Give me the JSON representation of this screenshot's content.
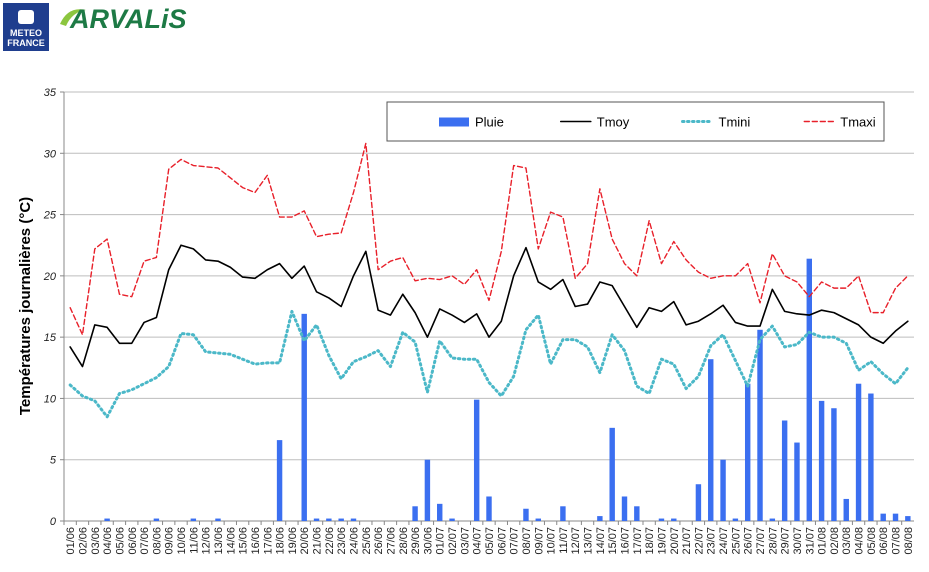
{
  "header": {
    "meteo_line1": "METEO",
    "meteo_line2": "FRANCE",
    "brand": "ARVALiS"
  },
  "chart_data": {
    "type": "combo",
    "y_label": "Températures journalières (°C)",
    "categories": [
      "01/06",
      "02/06",
      "03/06",
      "04/06",
      "05/06",
      "06/06",
      "07/06",
      "08/06",
      "09/06",
      "10/06",
      "11/06",
      "12/06",
      "13/06",
      "14/06",
      "15/06",
      "16/06",
      "17/06",
      "18/06",
      "19/06",
      "20/06",
      "21/06",
      "22/06",
      "23/06",
      "24/06",
      "25/06",
      "26/06",
      "27/06",
      "28/06",
      "29/06",
      "30/06",
      "01/07",
      "02/07",
      "03/07",
      "04/07",
      "05/07",
      "06/07",
      "07/07",
      "08/07",
      "09/07",
      "10/07",
      "11/07",
      "12/07",
      "13/07",
      "14/07",
      "15/07",
      "16/07",
      "17/07",
      "18/07",
      "19/07",
      "20/07",
      "21/07",
      "22/07",
      "23/07",
      "24/07",
      "25/07",
      "26/07",
      "27/07",
      "28/07",
      "29/07",
      "30/07",
      "31/07",
      "01/08",
      "02/08",
      "03/08",
      "04/08",
      "05/08",
      "06/08",
      "07/08",
      "08/08"
    ],
    "series": [
      {
        "name": "Pluie",
        "type": "bar",
        "color": "#3b6ff0",
        "values": [
          0,
          0,
          0,
          0.2,
          0,
          0,
          0,
          0.2,
          0,
          0,
          0.2,
          0,
          0.2,
          0,
          0,
          0,
          0,
          6.6,
          0,
          16.9,
          0.2,
          0.2,
          0.2,
          0.2,
          0,
          0,
          0,
          0,
          1.2,
          5.0,
          1.4,
          0.2,
          0,
          9.9,
          2.0,
          0,
          0,
          1.0,
          0.2,
          0,
          1.2,
          0,
          0,
          0.4,
          7.6,
          2.0,
          1.2,
          0,
          0.2,
          0.2,
          0,
          3.0,
          13.2,
          5.0,
          0.2,
          11.2,
          15.6,
          0.2,
          8.2,
          6.4,
          21.4,
          9.8,
          9.2,
          1.8,
          11.2,
          10.4,
          0.6,
          0.6,
          0.4
        ]
      },
      {
        "name": "Tmoy",
        "type": "line",
        "style": "solid",
        "color": "#000000",
        "values": [
          14.2,
          12.6,
          16.0,
          15.8,
          14.5,
          14.5,
          16.2,
          16.6,
          20.5,
          22.5,
          22.2,
          21.3,
          21.2,
          20.7,
          19.9,
          19.8,
          20.5,
          21.0,
          19.8,
          20.8,
          18.7,
          18.2,
          17.5,
          20.0,
          22.0,
          17.2,
          16.8,
          18.5,
          17.0,
          15.0,
          17.3,
          16.8,
          16.2,
          16.9,
          15.0,
          16.3,
          20.0,
          22.3,
          19.5,
          18.9,
          19.7,
          17.5,
          17.7,
          19.5,
          19.2,
          17.5,
          15.8,
          17.4,
          17.1,
          17.9,
          16.0,
          16.3,
          16.9,
          17.6,
          16.2,
          15.9,
          15.9,
          18.9,
          17.1,
          16.9,
          16.8,
          17.2,
          17.0,
          16.5,
          16.0,
          15.0,
          14.5,
          15.5,
          16.3
        ]
      },
      {
        "name": "Tmini",
        "type": "line",
        "style": "dotted",
        "color": "#4bb8c8",
        "values": [
          11.1,
          10.2,
          9.8,
          8.5,
          10.4,
          10.7,
          11.2,
          11.7,
          12.6,
          15.3,
          15.2,
          13.8,
          13.7,
          13.6,
          13.2,
          12.8,
          12.9,
          12.9,
          17.1,
          14.7,
          16.0,
          13.5,
          11.6,
          13.0,
          13.4,
          13.9,
          12.6,
          15.4,
          14.6,
          10.5,
          14.7,
          13.3,
          13.2,
          13.2,
          11.3,
          10.2,
          11.8,
          15.6,
          16.8,
          12.8,
          14.8,
          14.8,
          14.2,
          12.1,
          15.2,
          13.9,
          11.0,
          10.4,
          13.2,
          12.8,
          10.8,
          11.8,
          14.3,
          15.2,
          13.1,
          11.0,
          14.8,
          15.9,
          14.2,
          14.4,
          15.4,
          15.0,
          15.0,
          14.5,
          12.3,
          13.0,
          12.0,
          11.2,
          12.5
        ]
      },
      {
        "name": "Tmaxi",
        "type": "line",
        "style": "dashed",
        "color": "#e8202a",
        "values": [
          17.4,
          15.2,
          22.2,
          23.0,
          18.5,
          18.3,
          21.2,
          21.5,
          28.7,
          29.5,
          29.0,
          28.9,
          28.8,
          28.0,
          27.2,
          26.8,
          28.2,
          24.8,
          24.8,
          25.3,
          23.2,
          23.4,
          23.5,
          26.8,
          30.8,
          20.5,
          21.2,
          21.5,
          19.6,
          19.8,
          19.7,
          20.0,
          19.3,
          20.5,
          18.0,
          22.0,
          29.0,
          28.8,
          22.2,
          25.2,
          24.8,
          19.8,
          21.0,
          27.1,
          23.0,
          21.0,
          20.0,
          24.5,
          21.0,
          22.8,
          21.3,
          20.3,
          19.8,
          20.0,
          20.0,
          21.0,
          17.8,
          21.8,
          20.0,
          19.5,
          18.3,
          19.5,
          19.0,
          19.0,
          20.0,
          17.0,
          17.0,
          19.0,
          20.0
        ]
      }
    ],
    "ylim": [
      0,
      35
    ],
    "yticks": [
      0,
      5,
      10,
      15,
      20,
      25,
      30,
      35
    ],
    "grid": true,
    "legend": "top"
  }
}
